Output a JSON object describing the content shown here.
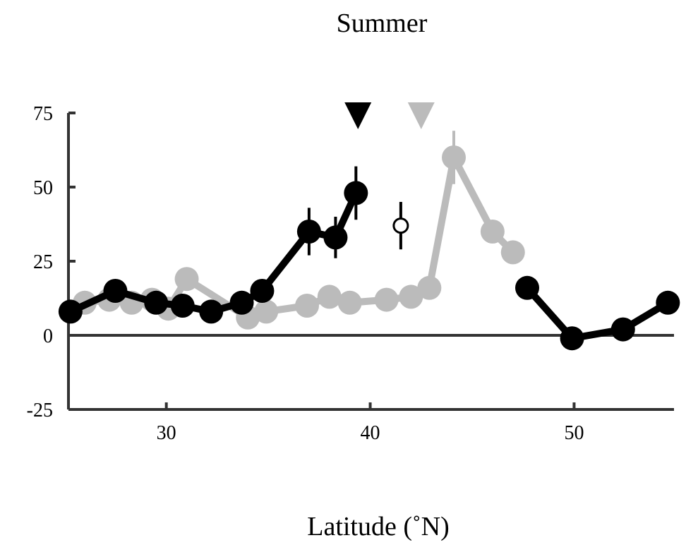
{
  "chart_data": {
    "type": "line",
    "title": "Summer",
    "xlabel": "Latitude (˚N)",
    "ylabel": "",
    "xlim": [
      25.2,
      54.9
    ],
    "ylim": [
      -25,
      75
    ],
    "xticks": [
      30,
      40,
      50
    ],
    "yticks": [
      75,
      50,
      25,
      0,
      -25
    ],
    "grid": false,
    "zero_line": true,
    "series": [
      {
        "color": "#bbbbbb",
        "points": [
          {
            "x": 26.0,
            "y": 11
          },
          {
            "x": 27.2,
            "y": 12
          },
          {
            "x": 28.3,
            "y": 11
          },
          {
            "x": 29.3,
            "y": 12
          },
          {
            "x": 30.1,
            "y": 9
          },
          {
            "x": 31.0,
            "y": 19
          },
          {
            "x": 34.0,
            "y": 6
          },
          {
            "x": 34.9,
            "y": 8
          },
          {
            "x": 36.9,
            "y": 10
          },
          {
            "x": 38.0,
            "y": 13
          },
          {
            "x": 39.0,
            "y": 11
          },
          {
            "x": 40.8,
            "y": 12
          },
          {
            "x": 42.0,
            "y": 13
          },
          {
            "x": 42.9,
            "y": 16
          },
          {
            "x": 44.1,
            "y": 60,
            "err": 9
          },
          {
            "x": 46.0,
            "y": 35
          },
          {
            "x": 47.0,
            "y": 28
          }
        ]
      },
      {
        "color": "#000000",
        "points": [
          {
            "x": 25.3,
            "y": 8
          },
          {
            "x": 27.5,
            "y": 15
          },
          {
            "x": 29.5,
            "y": 11
          },
          {
            "x": 30.8,
            "y": 10
          },
          {
            "x": 32.2,
            "y": 8
          },
          {
            "x": 33.7,
            "y": 11
          },
          {
            "x": 34.7,
            "y": 15
          },
          {
            "x": 37.0,
            "y": 35,
            "err": 8
          },
          {
            "x": 38.3,
            "y": 33,
            "err": 7
          },
          {
            "x": 39.3,
            "y": 48,
            "err": 9
          }
        ]
      },
      {
        "color": "#000000",
        "points": [
          {
            "x": 47.7,
            "y": 16
          },
          {
            "x": 49.9,
            "y": -1
          },
          {
            "x": 52.4,
            "y": 2
          },
          {
            "x": 54.6,
            "y": 11
          }
        ]
      }
    ],
    "open_point": {
      "x": 41.5,
      "y": 37,
      "err": 8
    },
    "markers": [
      {
        "x": 39.4,
        "color": "#000000"
      },
      {
        "x": 42.5,
        "color": "#bbbbbb"
      }
    ]
  }
}
